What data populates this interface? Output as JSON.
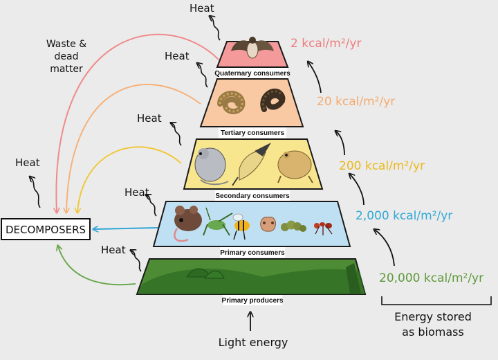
{
  "levels": [
    {
      "label": "Quaternary consumers",
      "energy": "2 kcal/m²/yr",
      "energy_color": "#ef7b7b"
    },
    {
      "label": "Tertiary consumers",
      "energy": "20 kcal/m²/yr",
      "energy_color": "#f5aa6e"
    },
    {
      "label": "Secondary consumers",
      "energy": "200 kcal/m²/yr",
      "energy_color": "#e9b91a"
    },
    {
      "label": "Primary consumers",
      "energy": "2,000 kcal/m²/yr",
      "energy_color": "#31a8d6"
    },
    {
      "label": "Primary producers",
      "energy": "20,000 kcal/m²/yr",
      "energy_color": "#5e9a3a"
    }
  ],
  "heat_label": "Heat",
  "decomposers": "DECOMPOSERS",
  "waste": [
    "Waste &",
    "dead",
    "matter"
  ],
  "energy_stored": [
    "Energy stored",
    "as biomass"
  ],
  "light_energy": "Light energy",
  "colors": {
    "quaternary_fill": "#f59a9a",
    "tertiary_fill": "#f9c9a4",
    "secondary_fill": "#f8e68e",
    "primary_consumer_fill": "#bfe0f3",
    "producer_fill": "#4d8c34"
  }
}
